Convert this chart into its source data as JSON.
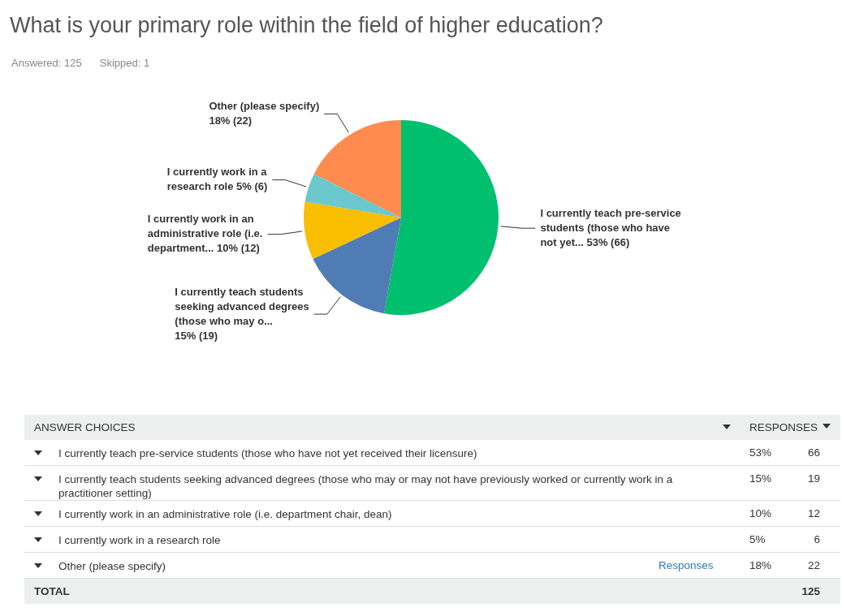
{
  "chart_data": {
    "type": "pie",
    "title": "What is your primary role within the field of higher education?",
    "subtitle": "Answered: 125",
    "categories": [
      "I currently teach pre-service students (those who have not yet...",
      "I currently teach students seeking advanced degrees (those who may o...",
      "I currently work in an administrative role (i.e. department...",
      "I currently work in a research role",
      "Other (please specify)"
    ],
    "values": [
      66,
      19,
      12,
      6,
      22
    ],
    "colors": [
      "#00bf6f",
      "#507cb6",
      "#f9be00",
      "#6bc8cd",
      "#ff8b4f"
    ],
    "value_labels": [
      "53% (66)",
      "15% (19)",
      "10% (12)",
      "5% (6)",
      "18% (22)"
    ],
    "legend": false,
    "annotations": [
      "Skipped: 1",
      "ANSWER CHOICES",
      "RESPONSES",
      "I currently teach pre-service students (those who have not yet received their licensure)",
      "53%",
      "66",
      "I currently teach students seeking advanced degrees (those who may or may not have previously worked or currently work in a practitioner setting)",
      "15%",
      "19",
      "I currently work in an administrative role (i.e. department chair, dean)",
      "10%",
      "12",
      "I currently work in a research role",
      "5%",
      "6",
      "Other (please specify)",
      "Responses",
      "18%",
      "22",
      "TOTAL",
      "125"
    ]
  }
}
